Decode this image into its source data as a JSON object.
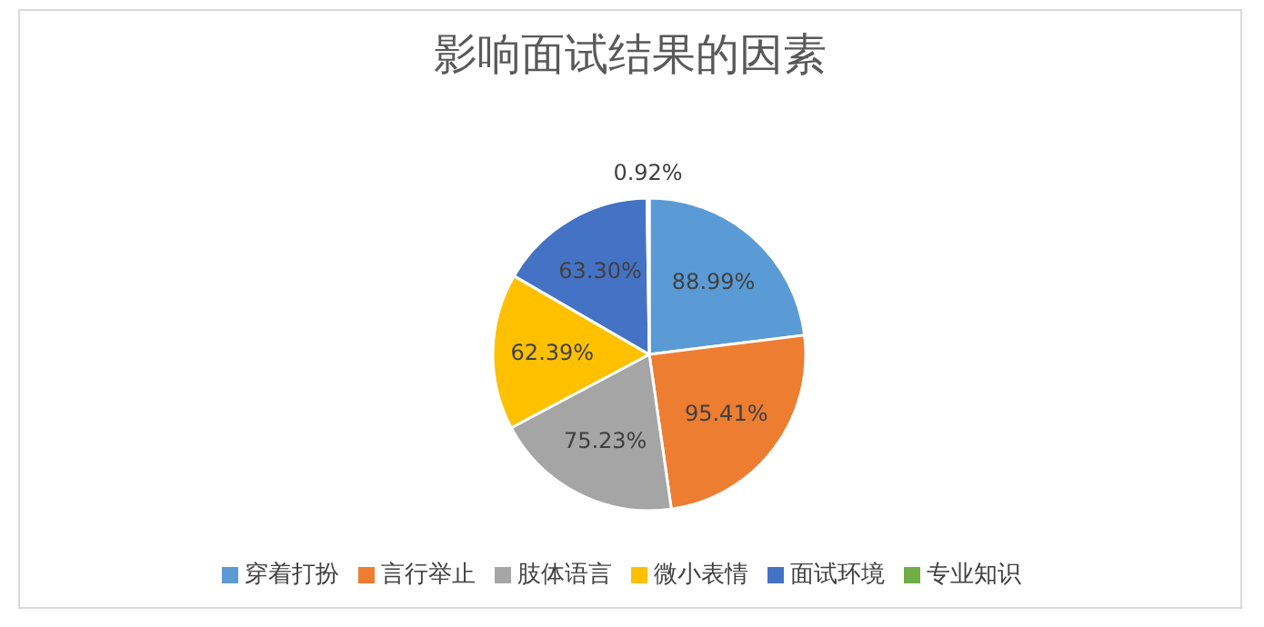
{
  "chart_data": {
    "type": "pie",
    "title": "影响面试结果的因素",
    "categories": [
      "穿着打扮",
      "言行举止",
      "肢体语言",
      "微小表情",
      "面试环境",
      "专业知识"
    ],
    "values": [
      88.99,
      95.41,
      75.23,
      62.39,
      63.3,
      0.92
    ],
    "value_labels": [
      "88.99%",
      "95.41%",
      "75.23%",
      "62.39%",
      "63.30%",
      "0.92%"
    ],
    "colors": [
      "#5b9bd5",
      "#ed7d31",
      "#a5a5a5",
      "#ffc000",
      "#4472c4",
      "#70ad47"
    ],
    "legend": "bottom"
  }
}
